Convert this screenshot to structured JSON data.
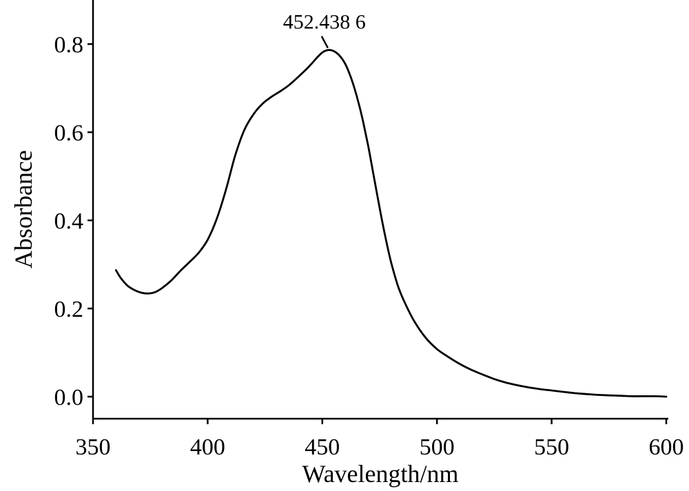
{
  "chart_data": {
    "type": "line",
    "xlabel": "Wavelength/nm",
    "ylabel": "Absorbance",
    "xlim": [
      350,
      600
    ],
    "ylim": [
      -0.05,
      0.9
    ],
    "x_ticks": [
      350,
      400,
      450,
      500,
      550,
      600
    ],
    "x_tick_labels": [
      "350",
      "400",
      "450",
      "500",
      "550",
      "600"
    ],
    "y_ticks": [
      0.0,
      0.2,
      0.4,
      0.6,
      0.8
    ],
    "y_tick_labels": [
      "0.0",
      "0.2",
      "0.4",
      "0.6",
      "0.8"
    ],
    "grid": false,
    "annotation": {
      "text": "452.438 6",
      "x": 452.4,
      "y": 0.785
    },
    "series": [
      {
        "x": [
          360,
          362,
          365,
          368,
          371,
          374,
          377,
          380,
          384,
          388,
          392,
          396,
          400,
          404,
          408,
          412,
          416,
          420,
          424,
          428,
          432,
          436,
          440,
          444,
          448,
          450,
          452,
          454,
          456,
          458,
          460,
          462,
          464,
          466,
          468,
          470,
          472,
          474,
          476,
          478,
          480,
          483,
          486,
          490,
          495,
          500,
          505,
          510,
          515,
          520,
          525,
          530,
          535,
          540,
          545,
          550,
          555,
          560,
          565,
          570,
          575,
          580,
          585,
          590,
          595,
          600
        ],
        "y": [
          0.287,
          0.27,
          0.252,
          0.242,
          0.236,
          0.234,
          0.237,
          0.246,
          0.263,
          0.285,
          0.305,
          0.326,
          0.356,
          0.404,
          0.47,
          0.547,
          0.605,
          0.641,
          0.665,
          0.681,
          0.694,
          0.709,
          0.728,
          0.748,
          0.771,
          0.781,
          0.786,
          0.786,
          0.781,
          0.771,
          0.755,
          0.731,
          0.7,
          0.663,
          0.619,
          0.569,
          0.513,
          0.456,
          0.401,
          0.35,
          0.305,
          0.251,
          0.213,
          0.172,
          0.134,
          0.108,
          0.09,
          0.074,
          0.061,
          0.05,
          0.04,
          0.032,
          0.026,
          0.021,
          0.017,
          0.014,
          0.011,
          0.008,
          0.006,
          0.004,
          0.003,
          0.002,
          0.001,
          0.001,
          0.001,
          0.0
        ]
      }
    ]
  }
}
